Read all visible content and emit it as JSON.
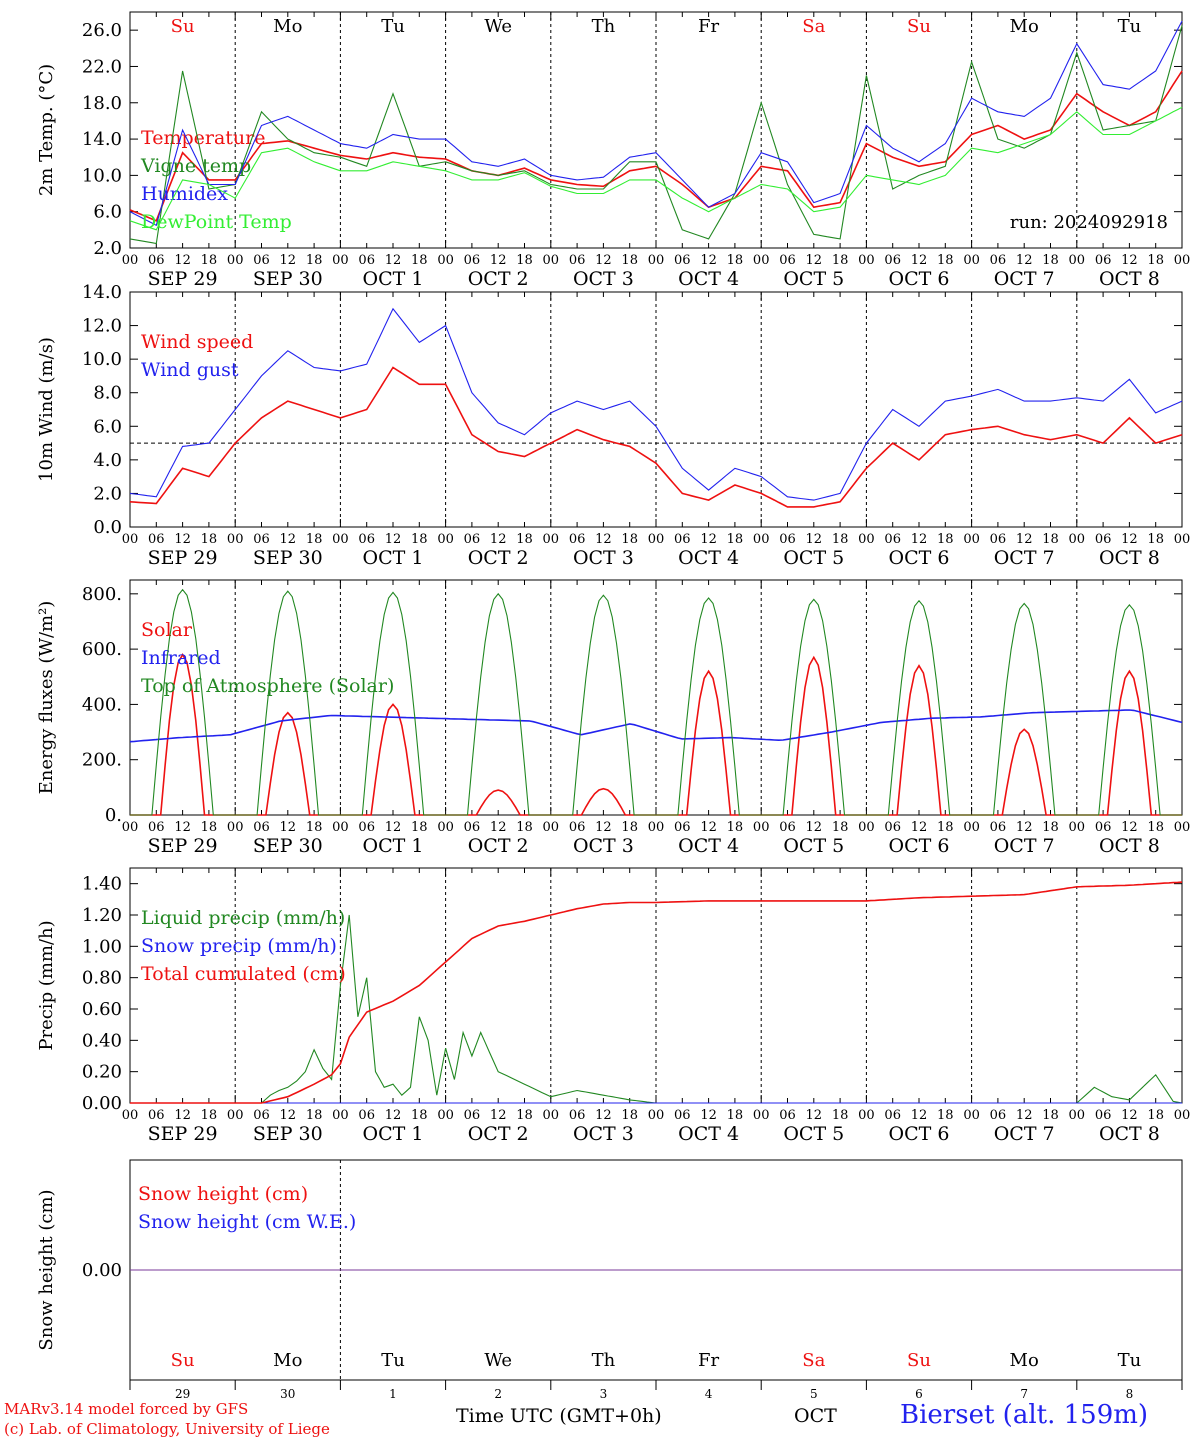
{
  "chart_data": [
    {
      "type": "line",
      "id": "temperature",
      "ylabel": "2m Temp. (°C)",
      "ylim": [
        2.0,
        28.0
      ],
      "yticks": [
        "2.0",
        "6.0",
        "10.0",
        "14.0",
        "18.0",
        "22.0",
        "26.0"
      ],
      "annotation": "run: 2024092918",
      "days_top": [
        {
          "label": "Su",
          "color": "#ee1111"
        },
        {
          "label": "Mo",
          "color": "#000000"
        },
        {
          "label": "Tu",
          "color": "#000000"
        },
        {
          "label": "We",
          "color": "#000000"
        },
        {
          "label": "Th",
          "color": "#000000"
        },
        {
          "label": "Fr",
          "color": "#000000"
        },
        {
          "label": "Sa",
          "color": "#ee1111"
        },
        {
          "label": "Su",
          "color": "#ee1111"
        },
        {
          "label": "Mo",
          "color": "#000000"
        },
        {
          "label": "Tu",
          "color": "#000000"
        }
      ],
      "x_hours": [
        0,
        6,
        12,
        18,
        24,
        30,
        36,
        42,
        48,
        54,
        60,
        66,
        72,
        78,
        84,
        90,
        96,
        102,
        108,
        114,
        120,
        126,
        132,
        138,
        144,
        150,
        156,
        162,
        168,
        174,
        180,
        186,
        192,
        198,
        204,
        210,
        216,
        222,
        228,
        234,
        240
      ],
      "series": [
        {
          "name": "Temperature",
          "color": "#ee1111",
          "values": [
            6.2,
            5.0,
            12.5,
            9.5,
            9.5,
            13.5,
            13.8,
            13.0,
            12.2,
            11.8,
            12.5,
            12.0,
            11.8,
            10.5,
            10.0,
            10.8,
            9.5,
            9.0,
            8.8,
            10.5,
            11.0,
            9.0,
            6.5,
            7.5,
            11.0,
            10.5,
            6.5,
            7.0,
            13.5,
            12.0,
            11.0,
            11.5,
            14.5,
            15.5,
            14.0,
            15.0,
            19.0,
            17.0,
            15.5,
            17.0,
            21.5
          ]
        },
        {
          "name": "Vigne temp",
          "color": "#228822",
          "values": [
            3.0,
            2.5,
            21.5,
            8.5,
            9.0,
            17.0,
            14.0,
            12.5,
            12.0,
            11.0,
            19.0,
            11.0,
            11.5,
            10.5,
            10.0,
            10.5,
            9.0,
            8.5,
            8.5,
            11.5,
            11.5,
            4.0,
            3.0,
            8.0,
            18.0,
            9.0,
            3.5,
            3.0,
            21.0,
            8.5,
            10.0,
            11.0,
            22.5,
            14.0,
            13.0,
            14.5,
            23.5,
            15.0,
            15.5,
            16.0,
            26.5
          ]
        },
        {
          "name": "Humidex",
          "color": "#2222ee",
          "values": [
            6.0,
            4.5,
            15.0,
            9.0,
            9.0,
            15.5,
            16.5,
            15.0,
            13.5,
            13.0,
            14.5,
            14.0,
            14.0,
            11.5,
            11.0,
            11.8,
            10.0,
            9.5,
            9.8,
            12.0,
            12.5,
            9.5,
            6.5,
            8.0,
            12.5,
            11.5,
            7.0,
            8.0,
            15.5,
            13.0,
            11.5,
            13.5,
            18.5,
            17.0,
            16.5,
            18.5,
            24.5,
            20.0,
            19.5,
            21.5,
            27.0
          ]
        },
        {
          "name": "DewPoint Temp",
          "color": "#33ee33",
          "values": [
            5.0,
            4.0,
            9.5,
            9.0,
            7.5,
            12.5,
            13.0,
            11.5,
            10.5,
            10.5,
            11.5,
            11.0,
            10.5,
            9.5,
            9.5,
            10.3,
            8.8,
            8.0,
            8.0,
            9.5,
            9.5,
            7.5,
            6.0,
            7.5,
            9.0,
            8.5,
            6.0,
            6.5,
            10.0,
            9.5,
            9.0,
            10.0,
            13.0,
            12.5,
            13.5,
            14.5,
            17.0,
            14.5,
            14.5,
            16.0,
            17.5
          ]
        }
      ]
    },
    {
      "type": "line",
      "id": "wind",
      "ylabel": "10m Wind (m/s)",
      "ylim": [
        0.0,
        14.0
      ],
      "yticks": [
        "0.0",
        "2.0",
        "4.0",
        "6.0",
        "8.0",
        "10.0",
        "12.0",
        "14.0"
      ],
      "reference_line": 5.0,
      "x_hours": [
        0,
        6,
        12,
        18,
        24,
        30,
        36,
        42,
        48,
        54,
        60,
        66,
        72,
        78,
        84,
        90,
        96,
        102,
        108,
        114,
        120,
        126,
        132,
        138,
        144,
        150,
        156,
        162,
        168,
        174,
        180,
        186,
        192,
        198,
        204,
        210,
        216,
        222,
        228,
        234,
        240
      ],
      "series": [
        {
          "name": "Wind speed",
          "color": "#ee1111",
          "values": [
            1.5,
            1.4,
            3.5,
            3.0,
            5.0,
            6.5,
            7.5,
            7.0,
            6.5,
            7.0,
            9.5,
            8.5,
            8.5,
            5.5,
            4.5,
            4.2,
            5.0,
            5.8,
            5.2,
            4.8,
            3.8,
            2.0,
            1.6,
            2.5,
            2.0,
            1.2,
            1.2,
            1.5,
            3.5,
            5.0,
            4.0,
            5.5,
            5.8,
            6.0,
            5.5,
            5.2,
            5.5,
            5.0,
            6.5,
            5.0,
            5.5
          ]
        },
        {
          "name": "Wind gust",
          "color": "#2222ee",
          "values": [
            2.0,
            1.8,
            4.8,
            5.0,
            7.0,
            9.0,
            10.5,
            9.5,
            9.3,
            9.7,
            13.0,
            11.0,
            12.0,
            8.0,
            6.2,
            5.5,
            6.8,
            7.5,
            7.0,
            7.5,
            6.0,
            3.5,
            2.2,
            3.5,
            3.0,
            1.8,
            1.6,
            2.0,
            5.0,
            7.0,
            6.0,
            7.5,
            7.8,
            8.2,
            7.5,
            7.5,
            7.7,
            7.5,
            8.8,
            6.8,
            7.5
          ]
        }
      ]
    },
    {
      "type": "line",
      "id": "energy",
      "ylabel": "Energy fluxes (W/m²)",
      "ylim": [
        0,
        850
      ],
      "yticks": [
        "0.",
        "200.",
        "400.",
        "600.",
        "800."
      ],
      "series": [
        {
          "name": "Solar",
          "color": "#ee1111",
          "day_peaks": [
            580,
            370,
            400,
            90,
            95,
            520,
            570,
            540,
            310,
            520
          ]
        },
        {
          "name": "Infrared",
          "color": "#2222ee",
          "values": [
            265,
            280,
            290,
            340,
            360,
            355,
            350,
            345,
            340,
            290,
            330,
            275,
            280,
            270,
            300,
            335,
            350,
            355,
            370,
            375,
            380,
            335
          ]
        },
        {
          "name": "Top of Atmosphere (Solar)",
          "color": "#228822",
          "day_peaks": [
            815,
            810,
            805,
            800,
            795,
            785,
            780,
            775,
            765,
            760
          ]
        }
      ]
    },
    {
      "type": "line",
      "id": "precip",
      "ylabel": "Precip (mm/h)",
      "ylim": [
        0.0,
        1.5
      ],
      "yticks": [
        "0.00",
        "0.20",
        "0.40",
        "0.60",
        "0.80",
        "1.00",
        "1.20",
        "1.40"
      ],
      "series": [
        {
          "name": "Liquid precip (mm/h)",
          "color": "#228822",
          "x_hours": [
            0,
            30,
            32,
            34,
            36,
            38,
            40,
            42,
            44,
            46,
            48,
            50,
            52,
            54,
            56,
            58,
            60,
            62,
            64,
            66,
            68,
            70,
            72,
            74,
            76,
            78,
            80,
            84,
            90,
            96,
            102,
            108,
            114,
            120,
            132,
            216,
            220,
            224,
            228,
            234,
            238,
            240
          ],
          "values": [
            0,
            0,
            0.05,
            0.08,
            0.1,
            0.14,
            0.2,
            0.34,
            0.22,
            0.15,
            0.75,
            1.2,
            0.55,
            0.8,
            0.2,
            0.1,
            0.12,
            0.05,
            0.1,
            0.55,
            0.4,
            0.05,
            0.35,
            0.15,
            0.45,
            0.3,
            0.45,
            0.2,
            0.12,
            0.04,
            0.08,
            0.05,
            0.02,
            0,
            0,
            0,
            0.1,
            0.04,
            0.02,
            0.18,
            0.01,
            0
          ]
        },
        {
          "name": "Snow precip (mm/h)",
          "color": "#2222ee",
          "values": [
            0
          ]
        },
        {
          "name": "Total cumulated (cm)",
          "color": "#ee1111",
          "x_hours": [
            0,
            30,
            36,
            42,
            46,
            48,
            50,
            54,
            60,
            66,
            72,
            78,
            84,
            90,
            96,
            102,
            108,
            114,
            120,
            132,
            144,
            168,
            180,
            192,
            204,
            216,
            228,
            240
          ],
          "values": [
            0,
            0,
            0.04,
            0.12,
            0.18,
            0.25,
            0.42,
            0.58,
            0.65,
            0.75,
            0.9,
            1.05,
            1.13,
            1.16,
            1.2,
            1.24,
            1.27,
            1.28,
            1.28,
            1.29,
            1.29,
            1.29,
            1.31,
            1.32,
            1.33,
            1.38,
            1.39,
            1.41
          ]
        }
      ]
    },
    {
      "type": "line",
      "id": "snow",
      "ylabel": "Snow height (cm)",
      "ylim": [
        -1,
        1
      ],
      "yticks": [
        "0.00"
      ],
      "series": [
        {
          "name": "Snow height (cm)",
          "color": "#ee1111",
          "values": [
            0.0
          ]
        },
        {
          "name": "Snow height (cm W.E.)",
          "color": "#2222ee",
          "values": [
            0.0
          ]
        }
      ],
      "days_bottom": [
        {
          "label": "Su",
          "color": "#ee1111",
          "num": "29"
        },
        {
          "label": "Mo",
          "color": "#000000",
          "num": "30"
        },
        {
          "label": "Tu",
          "color": "#000000",
          "num": "1"
        },
        {
          "label": "We",
          "color": "#000000",
          "num": "2"
        },
        {
          "label": "Th",
          "color": "#000000",
          "num": "3"
        },
        {
          "label": "Fr",
          "color": "#000000",
          "num": "4"
        },
        {
          "label": "Sa",
          "color": "#ee1111",
          "num": "5"
        },
        {
          "label": "Su",
          "color": "#ee1111",
          "num": "6"
        },
        {
          "label": "Mo",
          "color": "#000000",
          "num": "7"
        },
        {
          "label": "Tu",
          "color": "#000000",
          "num": "8"
        }
      ]
    }
  ],
  "x_axis": {
    "hour_ticks": [
      "00",
      "06",
      "12",
      "18"
    ],
    "last_tick": "00",
    "date_labels": [
      "SEP 29",
      "SEP 30",
      "OCT  1",
      "OCT  2",
      "OCT  3",
      "OCT  4",
      "OCT  5",
      "OCT  6",
      "OCT  7",
      "OCT  8"
    ]
  },
  "footer": {
    "credit_line1": "MARv3.14 model forced by GFS",
    "credit_line2": "(c) Lab. of Climatology, University of Liege",
    "xaxis_title": "Time UTC (GMT+0h)",
    "month": "OCT",
    "station": "Bierset (alt. 159m)"
  }
}
